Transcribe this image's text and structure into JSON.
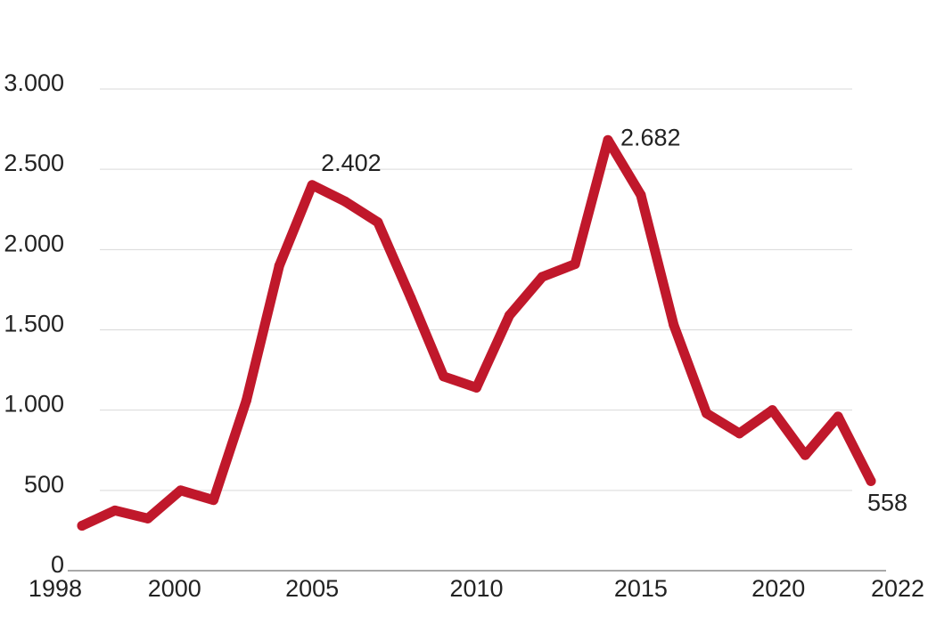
{
  "chart_data": {
    "type": "line",
    "title": "",
    "xlabel": "",
    "ylabel": "",
    "ylim": [
      0,
      3000
    ],
    "xlim": [
      1998,
      2022
    ],
    "grid": true,
    "legend": "none",
    "y_ticks": [
      {
        "value": 0,
        "label": "0"
      },
      {
        "value": 500,
        "label": "500"
      },
      {
        "value": 1000,
        "label": "1.000"
      },
      {
        "value": 1500,
        "label": "1.500"
      },
      {
        "value": 2000,
        "label": "2.000"
      },
      {
        "value": 2500,
        "label": "2.500"
      },
      {
        "value": 3000,
        "label": "3.000"
      }
    ],
    "x_ticks": [
      {
        "value": 1998,
        "label": "1998"
      },
      {
        "value": 2000,
        "label": "2000"
      },
      {
        "value": 2005,
        "label": "2005"
      },
      {
        "value": 2010,
        "label": "2010"
      },
      {
        "value": 2015,
        "label": "2015"
      },
      {
        "value": 2020,
        "label": "2020"
      },
      {
        "value": 2022,
        "label": "2022"
      }
    ],
    "series": [
      {
        "color": "#c0182b",
        "x": [
          1998,
          1999,
          2000,
          2001,
          2002,
          2003,
          2004,
          2005,
          2006,
          2007,
          2008,
          2009,
          2010,
          2011,
          2012,
          2013,
          2014,
          2015,
          2016,
          2017,
          2018,
          2019,
          2020,
          2021,
          2022
        ],
        "values": [
          280,
          375,
          325,
          500,
          440,
          1060,
          1900,
          2402,
          2300,
          2170,
          1700,
          1210,
          1140,
          1590,
          1830,
          1910,
          2682,
          2340,
          1530,
          980,
          855,
          1000,
          720,
          960,
          558
        ]
      }
    ],
    "annotations": [
      {
        "x": 2005,
        "y": 2402,
        "label": "2.402"
      },
      {
        "x": 2014,
        "y": 2682,
        "label": "2.682"
      },
      {
        "x": 2022,
        "y": 558,
        "label": "558"
      }
    ]
  }
}
